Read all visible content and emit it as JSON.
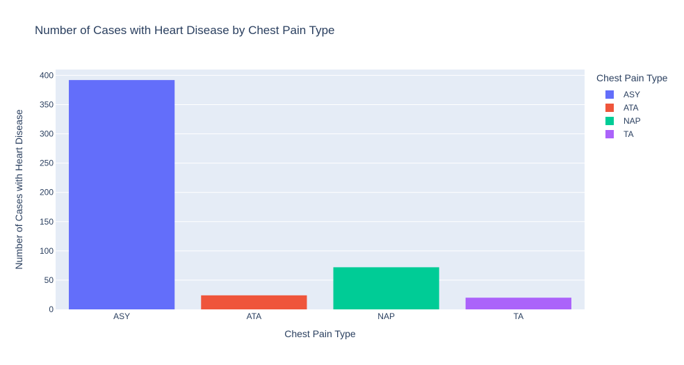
{
  "chart_data": {
    "type": "bar",
    "title": "Number of Cases with Heart Disease by Chest Pain Type",
    "xlabel": "Chest Pain Type",
    "ylabel": "Number of Cases with Heart Disease",
    "categories": [
      "ASY",
      "ATA",
      "NAP",
      "TA"
    ],
    "values": [
      392,
      24,
      72,
      20
    ],
    "colors": [
      "#636efa",
      "#EF553B",
      "#00cc96",
      "#ab63fa"
    ],
    "ylim": [
      0,
      410
    ],
    "yticks": [
      0,
      50,
      100,
      150,
      200,
      250,
      300,
      350,
      400
    ],
    "grid": true,
    "legend_title": "Chest Pain Type",
    "legend_position": "right",
    "plot_background": "#e5ecf6"
  }
}
